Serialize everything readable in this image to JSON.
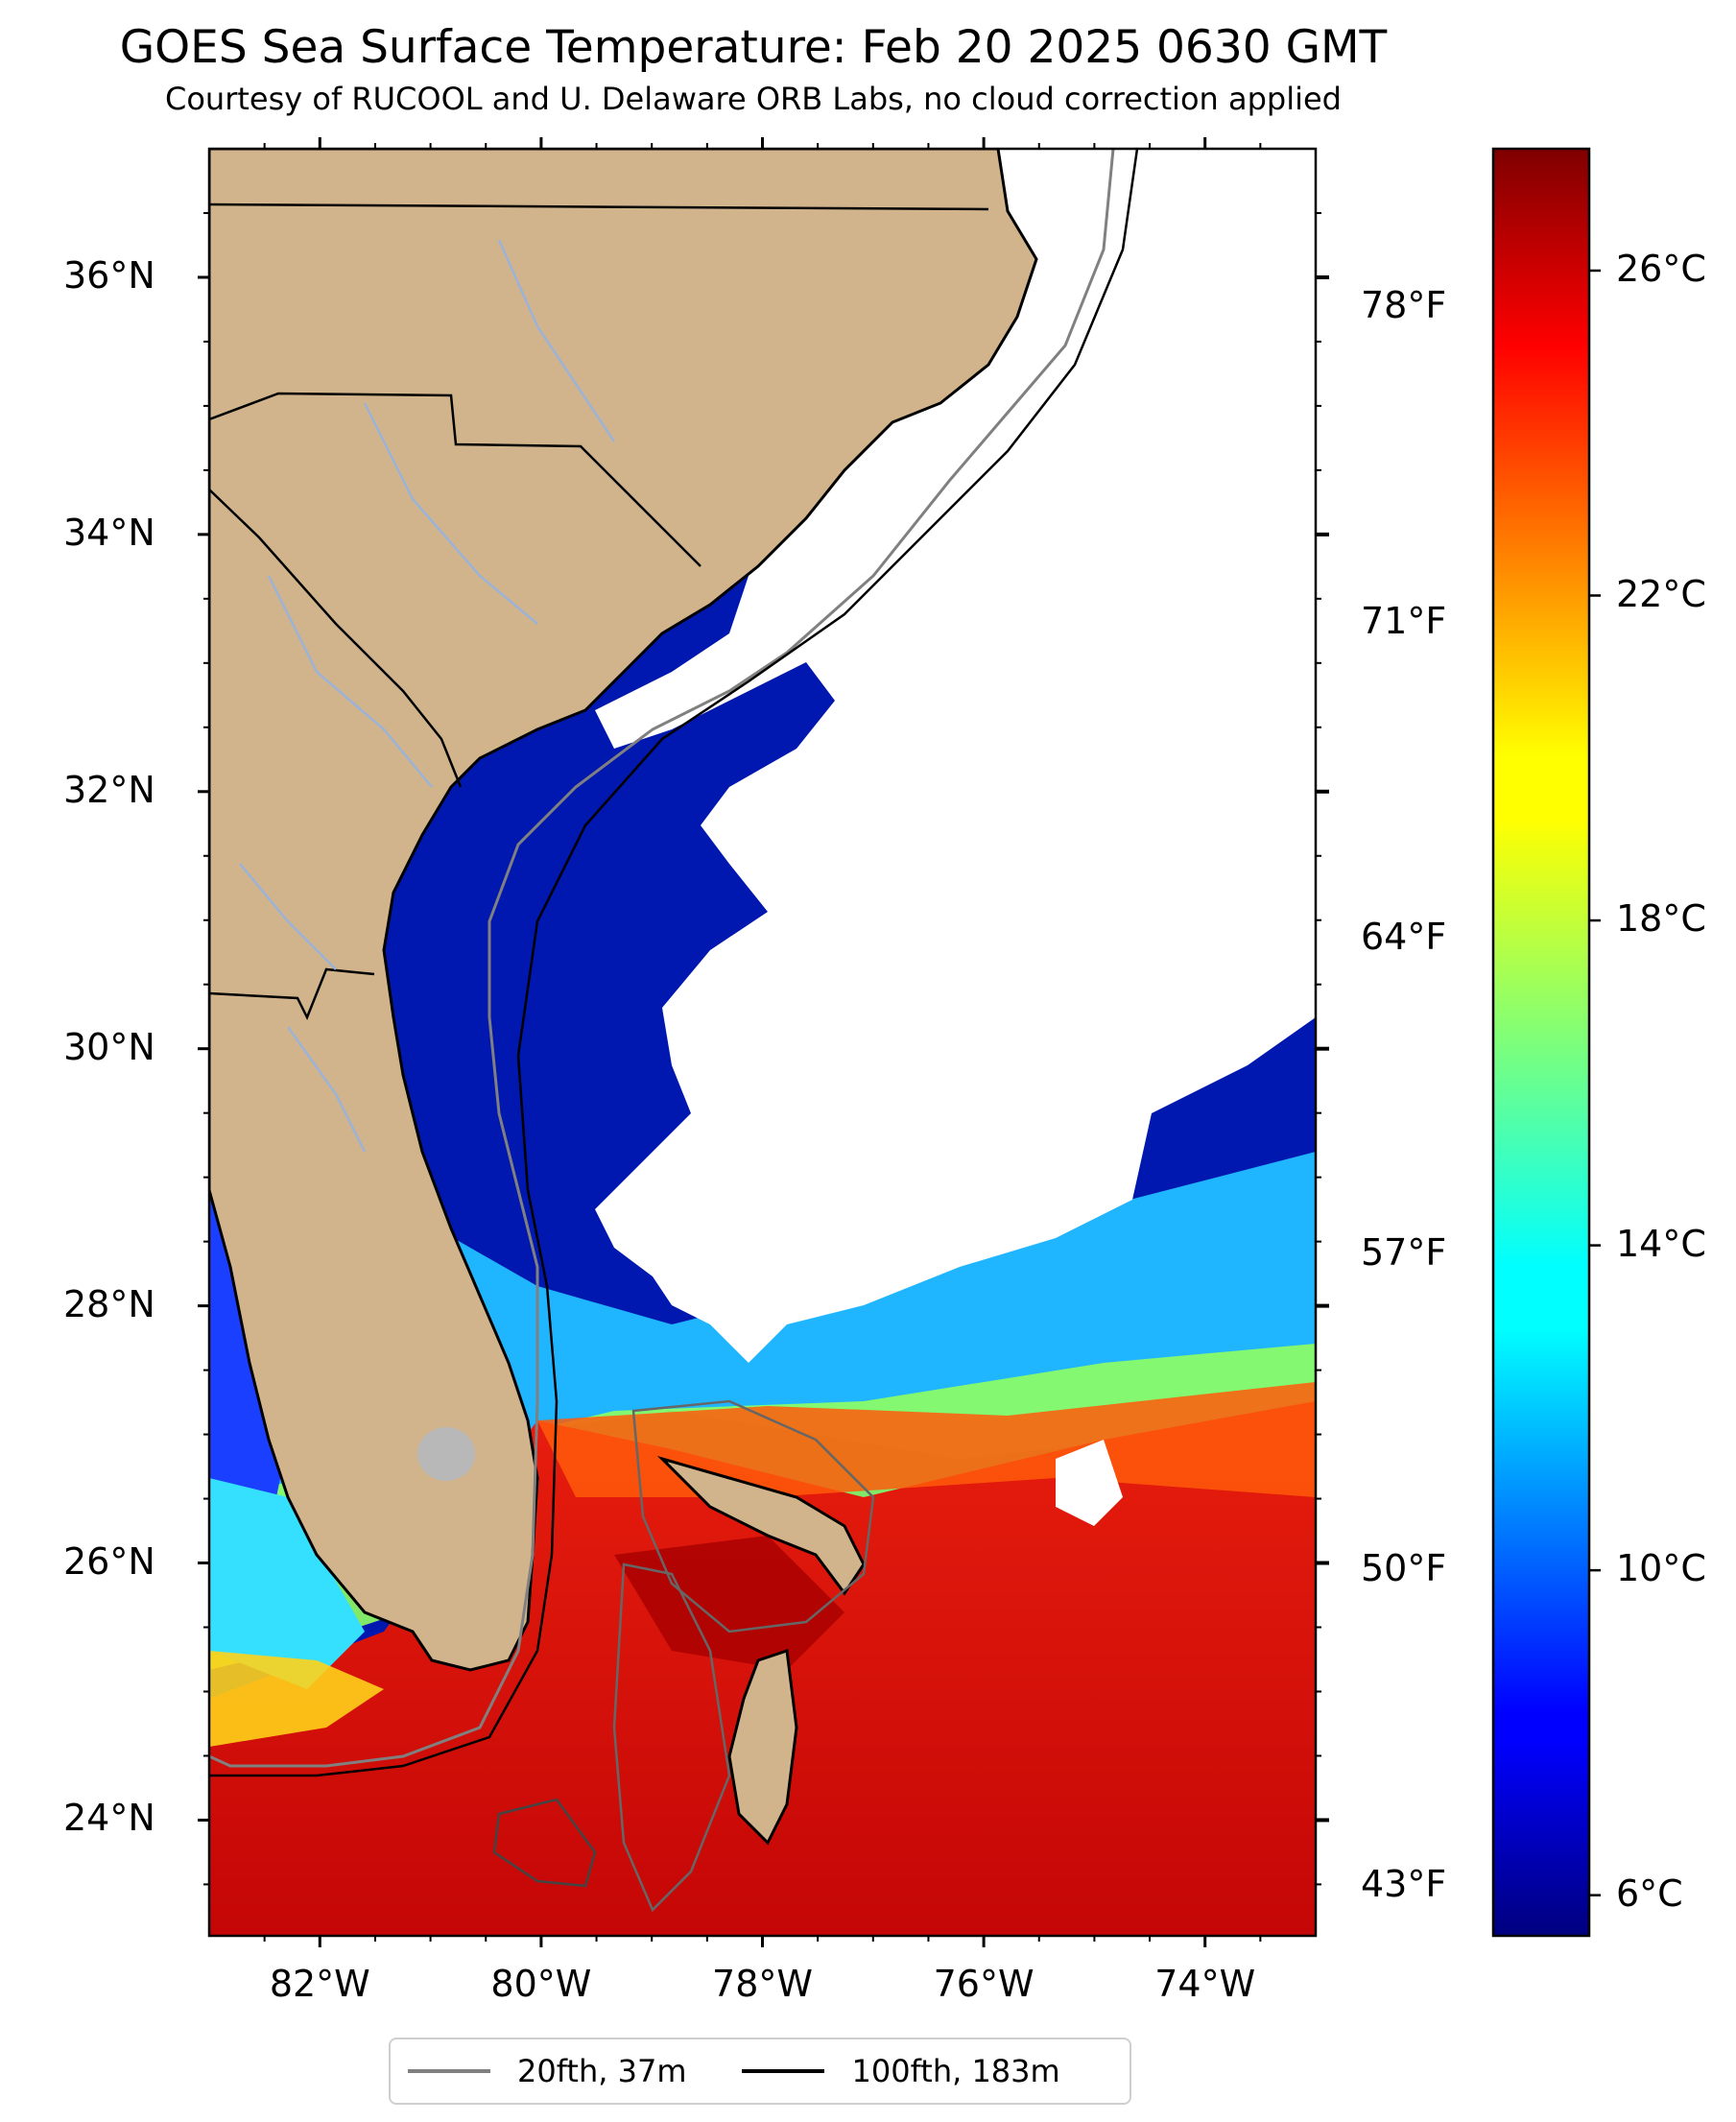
{
  "title": "GOES Sea Surface Temperature: Feb 20 2025 0630 GMT",
  "subtitle": "Courtesy of RUCOOL and U. Delaware ORB Labs, no cloud correction applied",
  "map": {
    "lon_range": [
      -83,
      -73
    ],
    "lat_range": [
      23.1,
      37.0
    ],
    "lat_ticks": [
      {
        "value": 36,
        "label": "36°N"
      },
      {
        "value": 34,
        "label": "34°N"
      },
      {
        "value": 32,
        "label": "32°N"
      },
      {
        "value": 30,
        "label": "30°N"
      },
      {
        "value": 28,
        "label": "28°N"
      },
      {
        "value": 26,
        "label": "26°N"
      },
      {
        "value": 24,
        "label": "24°N"
      }
    ],
    "lon_ticks": [
      {
        "value": -82,
        "label": "82°W"
      },
      {
        "value": -80,
        "label": "80°W"
      },
      {
        "value": -78,
        "label": "78°W"
      },
      {
        "value": -76,
        "label": "76°W"
      },
      {
        "value": -74,
        "label": "74°W"
      }
    ],
    "fahrenheit_axis": [
      {
        "value": 78,
        "label": "78°F"
      },
      {
        "value": 71,
        "label": "71°F"
      },
      {
        "value": 64,
        "label": "64°F"
      },
      {
        "value": 57,
        "label": "57°F"
      },
      {
        "value": 50,
        "label": "50°F"
      },
      {
        "value": 43,
        "label": "43°F"
      }
    ],
    "land_color": "#d2b48c",
    "cloud_color": "#ffffff",
    "river_color": "#9bb3d8",
    "lake_color": "#b8b8b8"
  },
  "colorbar": {
    "colormap": "jet",
    "range_c": [
      5.5,
      27.5
    ],
    "ticks": [
      {
        "value": 26,
        "label": "26°C"
      },
      {
        "value": 22,
        "label": "22°C"
      },
      {
        "value": 18,
        "label": "18°C"
      },
      {
        "value": 14,
        "label": "14°C"
      },
      {
        "value": 10,
        "label": "10°C"
      },
      {
        "value": 6,
        "label": "6°C"
      }
    ]
  },
  "legend": {
    "items": [
      {
        "label": "20fth, 37m",
        "color": "#808080"
      },
      {
        "label": "100fth, 183m",
        "color": "#000000"
      }
    ]
  }
}
